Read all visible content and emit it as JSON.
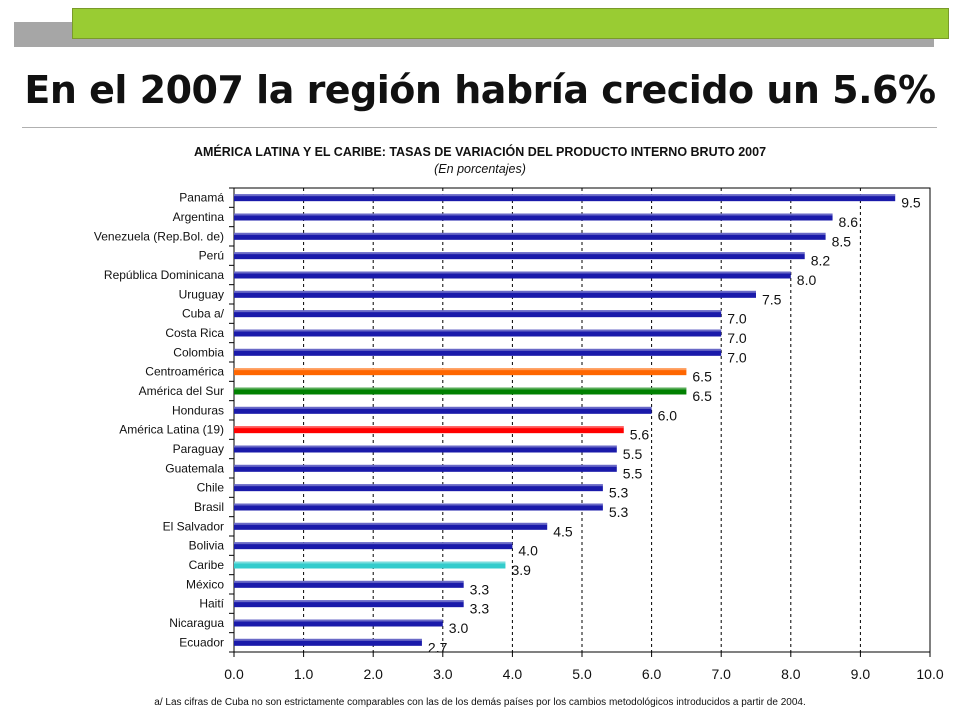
{
  "slide": {
    "title": "En el 2007 la región habría crecido un 5.6%",
    "footnote": "a/ Las cifras de Cuba no son estrictamente comparables con las de los demás países por los cambios metodológicos introducidos a partir de 2004."
  },
  "colors": {
    "banner": "#99cc33",
    "banner_shadow": "#a6a6a6",
    "bar_default": "#1a1aaa",
    "centroamerica": "#ff6600",
    "america_del_sur": "#008000",
    "america_latina": "#ff0000",
    "caribe": "#33cccc"
  },
  "chart_data": {
    "type": "bar",
    "orientation": "horizontal",
    "title": "AMÉRICA LATINA Y EL CARIBE: TASAS DE VARIACIÓN DEL PRODUCTO INTERNO BRUTO 2007",
    "subtitle": "(En porcentajes)",
    "xlabel": "",
    "ylabel": "",
    "xlim": [
      0,
      10
    ],
    "x_ticks": [
      "0.0",
      "1.0",
      "2.0",
      "3.0",
      "4.0",
      "5.0",
      "6.0",
      "7.0",
      "8.0",
      "9.0",
      "10.0"
    ],
    "grid": "vertical dashed",
    "categories": [
      "Panamá",
      "Argentina",
      "Venezuela (Rep.Bol. de)",
      "Perú",
      "República Dominicana",
      "Uruguay",
      "Cuba a/",
      "Costa Rica",
      "Colombia",
      "Centroamérica",
      "América del Sur",
      "Honduras",
      "América Latina (19)",
      "Paraguay",
      "Guatemala",
      "Chile",
      "Brasil",
      "El Salvador",
      "Bolivia",
      "Caribe",
      "México",
      "Haití",
      "Nicaragua",
      "Ecuador"
    ],
    "values": [
      9.5,
      8.6,
      8.5,
      8.2,
      8.0,
      7.5,
      7.0,
      7.0,
      7.0,
      6.5,
      6.5,
      6.0,
      5.6,
      5.5,
      5.5,
      5.3,
      5.3,
      4.5,
      4.0,
      3.9,
      3.3,
      3.3,
      3.0,
      2.7
    ],
    "value_labels": [
      "9.5",
      "8.6",
      "8.5",
      "8.2",
      "8.0",
      "7.5",
      "7.0",
      "7.0",
      "7.0",
      "6.5",
      "6.5",
      "6.0",
      "5.6",
      "5.5",
      "5.5",
      "5.3",
      "5.3",
      "4.5",
      "4.0",
      "3.9",
      "3.3",
      "3.3",
      "3.0",
      "2.7"
    ],
    "bar_colors": [
      "#1a1aaa",
      "#1a1aaa",
      "#1a1aaa",
      "#1a1aaa",
      "#1a1aaa",
      "#1a1aaa",
      "#1a1aaa",
      "#1a1aaa",
      "#1a1aaa",
      "#ff6600",
      "#008000",
      "#1a1aaa",
      "#ff0000",
      "#1a1aaa",
      "#1a1aaa",
      "#1a1aaa",
      "#1a1aaa",
      "#1a1aaa",
      "#1a1aaa",
      "#33cccc",
      "#1a1aaa",
      "#1a1aaa",
      "#1a1aaa",
      "#1a1aaa"
    ]
  }
}
